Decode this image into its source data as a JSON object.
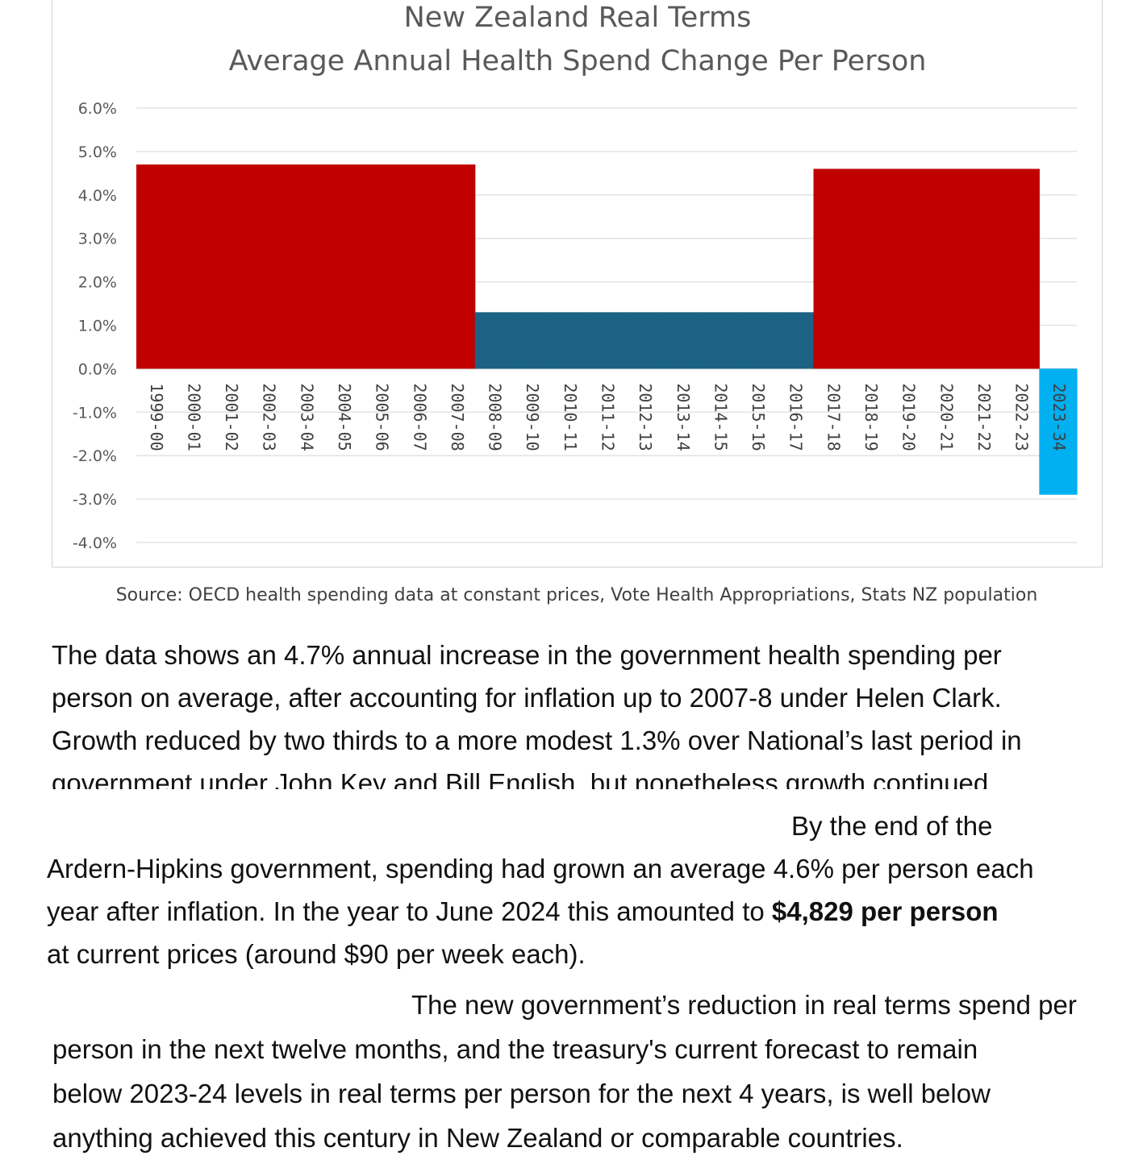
{
  "chart_data": {
    "type": "bar",
    "title": [
      "New Zealand Real Terms",
      "Average Annual Health Spend Change Per Person"
    ],
    "categories": [
      "1999-00",
      "2000-01",
      "2001-02",
      "2002-03",
      "2003-04",
      "2004-05",
      "2005-06",
      "2006-07",
      "2007-08",
      "2008-09",
      "2009-10",
      "2010-11",
      "2011-12",
      "2012-13",
      "2013-14",
      "2014-15",
      "2015-16",
      "2016-17",
      "2017-18",
      "2018-19",
      "2019-20",
      "2020-21",
      "2021-22",
      "2022-23",
      "2023-34"
    ],
    "values": [
      4.7,
      4.7,
      4.7,
      4.7,
      4.7,
      4.7,
      4.7,
      4.7,
      4.7,
      1.3,
      1.3,
      1.3,
      1.3,
      1.3,
      1.3,
      1.3,
      1.3,
      1.3,
      4.6,
      4.6,
      4.6,
      4.6,
      4.6,
      4.6,
      -2.9
    ],
    "bar_colors": [
      "#c00000",
      "#c00000",
      "#c00000",
      "#c00000",
      "#c00000",
      "#c00000",
      "#c00000",
      "#c00000",
      "#c00000",
      "#1b6284",
      "#1b6284",
      "#1b6284",
      "#1b6284",
      "#1b6284",
      "#1b6284",
      "#1b6284",
      "#1b6284",
      "#1b6284",
      "#c00000",
      "#c00000",
      "#c00000",
      "#c00000",
      "#c00000",
      "#c00000",
      "#00b0f0"
    ],
    "ylim": [
      -4,
      6
    ],
    "yticks": [
      "6.0%",
      "5.0%",
      "4.0%",
      "3.0%",
      "2.0%",
      "1.0%",
      "0.0%",
      "-1.0%",
      "-2.0%",
      "-3.0%",
      "-4.0%"
    ],
    "grid": true,
    "bar_gap": 0,
    "legend": "none",
    "xlabel": "",
    "ylabel": ""
  },
  "source_note": "Source: OECD health spending data at constant prices, Vote Health Appropriations, Stats NZ population",
  "paragraphs": {
    "p1": [
      "The data shows an 4.7% annual increase in the government health spending per",
      "person on average, after accounting for inflation up to 2007-8 under Helen Clark.",
      "Growth reduced by two thirds to a more modest 1.3% over National’s last period in",
      "government under John Key and Bill English, but nonetheless growth continued."
    ],
    "p2": {
      "line1": "By the end of the",
      "line2": "Ardern-Hipkins government, spending had grown an average 4.6% per person each",
      "line3_before": "year after inflation.  In the year to June 2024 this amounted to ",
      "line3_bold": "$4,829 per person",
      "line4": "at current prices (around $90 per week each)."
    },
    "p3": [
      "The new government’s reduction in real terms spend per",
      "person in the next twelve months, and the treasury's current forecast to remain",
      "below 2023-24 levels in real terms per person for the next 4 years, is well below",
      "anything achieved this century in New Zealand or comparable countries."
    ]
  }
}
